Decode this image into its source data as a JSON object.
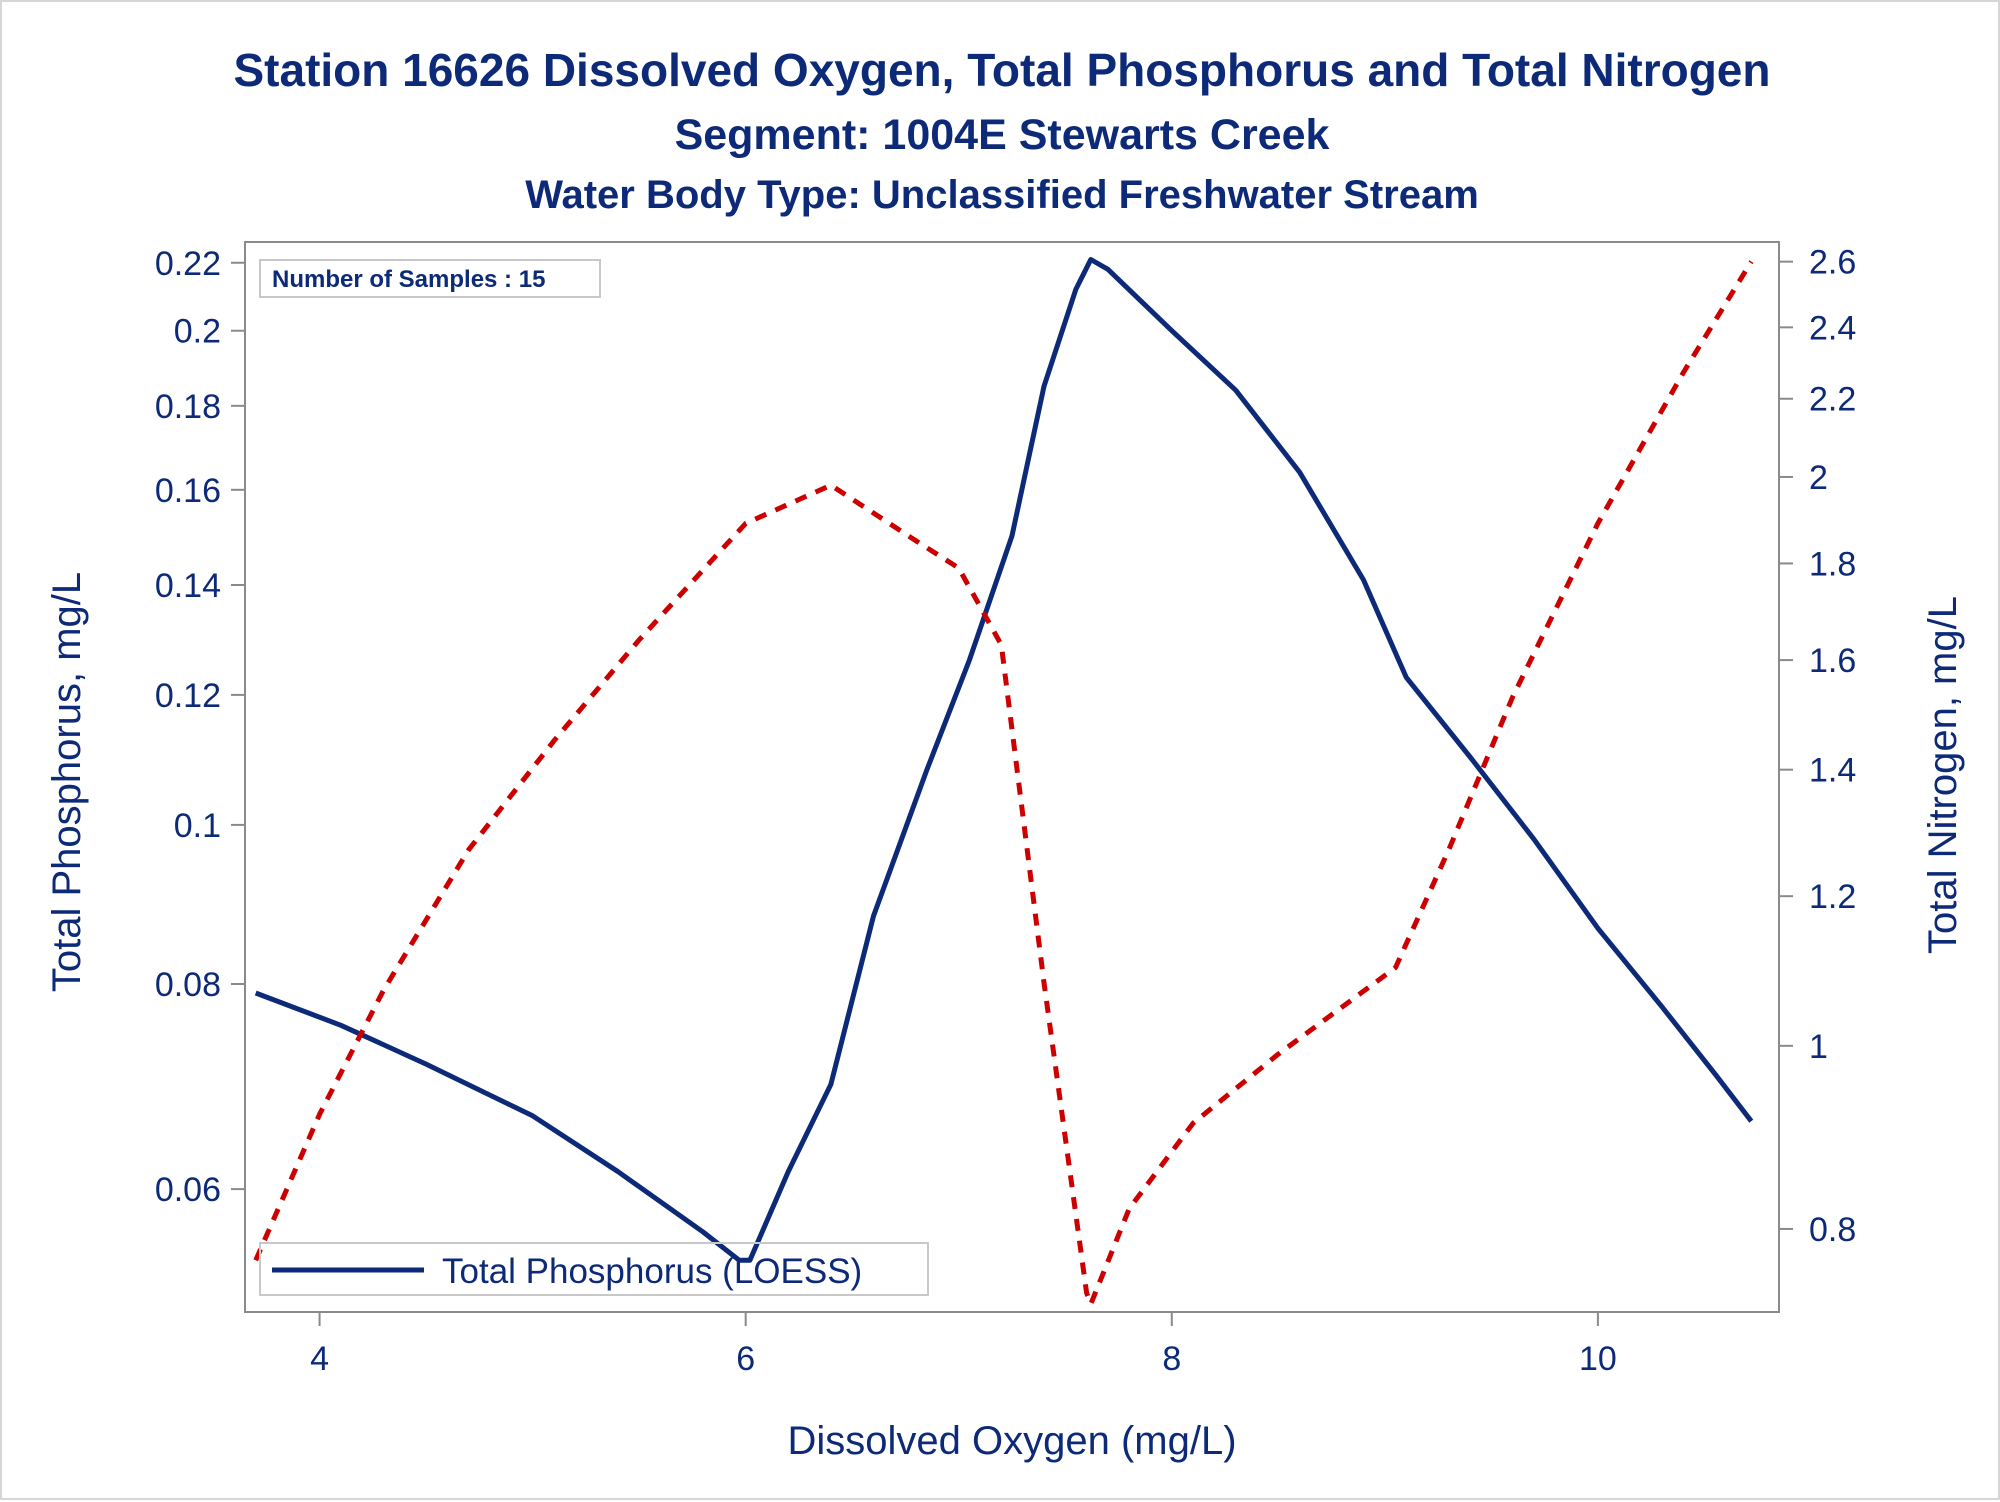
{
  "chart_data": {
    "type": "line",
    "title": "Station 16626  Dissolved Oxygen, Total Phosphorus and Total Nitrogen",
    "subtitle": "Segment: 1004E  Stewarts Creek",
    "subtitle2": "Water Body Type: Unclassified Freshwater Stream",
    "xlabel": "Dissolved Oxygen (mg/L)",
    "ylabel": "Total Phosphorus, mg/L",
    "y2label": "Total Nitrogen, mg/L",
    "annotation": "Number of Samples : 15",
    "xlim": [
      3.65,
      10.85
    ],
    "ylim": [
      0.0505,
      0.2265
    ],
    "y2lim": [
      0.723,
      2.663
    ],
    "y_scale": "log",
    "y2_scale": "log",
    "xticks": [
      "4",
      "6",
      "8",
      "10"
    ],
    "yticks": [
      "0.06",
      "0.08",
      "0.1",
      "0.12",
      "0.14",
      "0.16",
      "0.18",
      "0.2",
      "0.22"
    ],
    "y2ticks": [
      "0.8",
      "1",
      "1.2",
      "1.4",
      "1.6",
      "1.8",
      "2",
      "2.2",
      "2.4",
      "2.6"
    ],
    "legend": {
      "entries": [
        "Total Phosphorus (LOESS)"
      ],
      "placement": "bottom-left"
    },
    "grid": false,
    "series": [
      {
        "name": "Total Phosphorus (LOESS)",
        "axis": "left",
        "color": "#0d2a78",
        "style": "solid",
        "x": [
          3.7,
          4.1,
          4.5,
          5.0,
          5.4,
          5.8,
          5.97,
          6.02,
          6.2,
          6.4,
          6.6,
          6.85,
          7.05,
          7.25,
          7.4,
          7.55,
          7.62,
          7.7,
          8.0,
          8.3,
          8.6,
          8.9,
          9.1,
          9.4,
          9.7,
          10.0,
          10.3,
          10.55,
          10.72
        ],
        "y": [
          0.079,
          0.0755,
          0.0715,
          0.0665,
          0.0615,
          0.0565,
          0.0543,
          0.0543,
          0.0615,
          0.0695,
          0.088,
          0.108,
          0.126,
          0.15,
          0.185,
          0.212,
          0.221,
          0.218,
          0.2,
          0.184,
          0.164,
          0.141,
          0.123,
          0.11,
          0.098,
          0.0865,
          0.0775,
          0.0705,
          0.066
        ]
      },
      {
        "axis": "right",
        "color": "#cc0000",
        "style": "dashed",
        "x": [
          3.7,
          4.0,
          4.3,
          4.7,
          5.1,
          5.5,
          6.0,
          6.4,
          6.8,
          7.0,
          7.2,
          7.4,
          7.6,
          7.62,
          7.8,
          8.1,
          8.5,
          9.05,
          9.3,
          9.6,
          10.0,
          10.4,
          10.72
        ],
        "y": [
          0.77,
          0.92,
          1.07,
          1.27,
          1.45,
          1.64,
          1.89,
          1.98,
          1.85,
          1.79,
          1.63,
          1.08,
          0.74,
          0.73,
          0.82,
          0.91,
          0.99,
          1.1,
          1.27,
          1.53,
          1.89,
          2.27,
          2.6
        ]
      }
    ]
  }
}
